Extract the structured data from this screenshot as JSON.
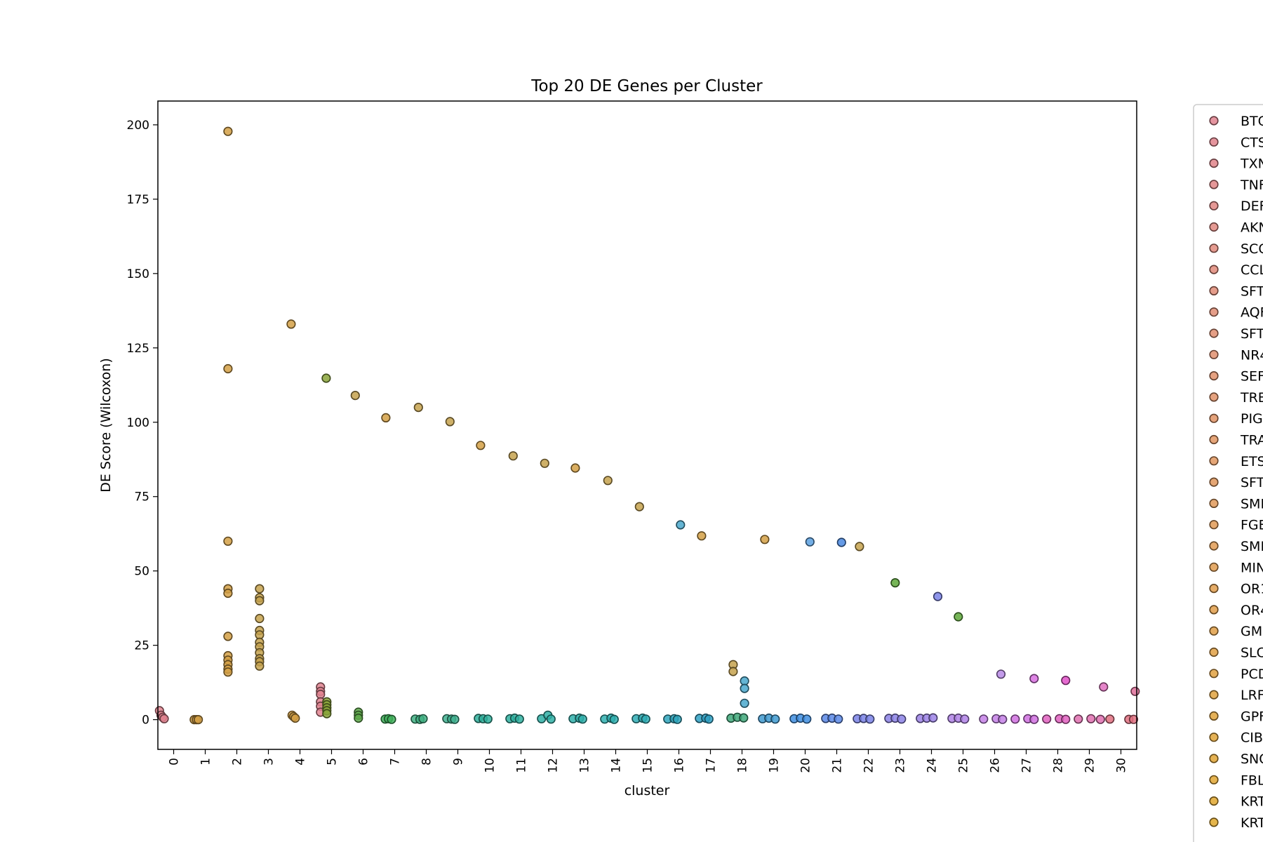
{
  "chart_data": {
    "type": "scatter",
    "title": "Top 20 DE Genes per Cluster",
    "xlabel": "cluster",
    "ylabel": "DE Score (Wilcoxon)",
    "xlim": [
      -0.5,
      30.5
    ],
    "ylim": [
      -10,
      208
    ],
    "categories": [
      "0",
      "1",
      "2",
      "3",
      "4",
      "5",
      "6",
      "7",
      "8",
      "9",
      "10",
      "11",
      "12",
      "13",
      "14",
      "15",
      "16",
      "17",
      "18",
      "19",
      "20",
      "21",
      "22",
      "23",
      "24",
      "25",
      "26",
      "27",
      "28",
      "29",
      "30"
    ],
    "yticks": [
      0,
      25,
      50,
      75,
      100,
      125,
      150,
      175,
      200
    ],
    "ytick_labels": [
      "0",
      "25",
      "50",
      "75",
      "100",
      "125",
      "150",
      "175",
      "200"
    ],
    "grid": false,
    "legend_position": "right (outside plot, truncated)",
    "legend": [
      "BTG",
      "CTS",
      "TXN",
      "TNF",
      "DEF",
      "AKN",
      "SCG",
      "CCL",
      "SFT",
      "AQF",
      "SFT",
      "NR4",
      "SEF",
      "TRE",
      "PIG",
      "TRA",
      "ETS",
      "SFT",
      "SMI",
      "FGE",
      "SMI",
      "MIN",
      "OR1",
      "OR4",
      "GM",
      "SLC",
      "PCD",
      "LRF",
      "GPF",
      "CIB",
      "SNC",
      "FBL",
      "KRT",
      "KRT"
    ],
    "legend_colors": [
      "#e0828f",
      "#e0838c",
      "#e08489",
      "#e08586",
      "#e08683",
      "#e08880",
      "#e0897d",
      "#e08a7a",
      "#e08c77",
      "#e08d74",
      "#e08e71",
      "#e08f6e",
      "#e0916b",
      "#e09268",
      "#e09365",
      "#e09562",
      "#e0965f",
      "#e0975c",
      "#e09959",
      "#e09a56",
      "#e09b53",
      "#e09c50",
      "#e09d4d",
      "#e09e4a",
      "#e09f47",
      "#e0a044",
      "#e0a141",
      "#e0a23e",
      "#e0a33b",
      "#e0a438",
      "#e0a535",
      "#e0a632",
      "#e0a72f",
      "#e0a82c"
    ],
    "series": [
      {
        "values": [
          [
            -0.45,
            3
          ],
          [
            -0.4,
            1.5
          ],
          [
            -0.35,
            0.8
          ],
          [
            -0.3,
            0.3
          ]
        ],
        "color": "#e0828f"
      },
      {
        "values": [
          [
            0.65,
            0
          ],
          [
            0.72,
            0
          ],
          [
            0.78,
            0
          ]
        ],
        "color": "#d4a045"
      },
      {
        "values": [
          [
            1.72,
            197.8
          ],
          [
            1.72,
            118
          ],
          [
            1.72,
            60
          ],
          [
            1.72,
            44
          ],
          [
            1.72,
            42.5
          ],
          [
            1.72,
            28
          ],
          [
            1.72,
            21.5
          ],
          [
            1.72,
            20
          ],
          [
            1.72,
            18.5
          ],
          [
            1.72,
            17
          ],
          [
            1.72,
            16
          ]
        ],
        "color": "#d4a045"
      },
      {
        "values": [
          [
            2.72,
            44
          ],
          [
            2.72,
            41
          ],
          [
            2.72,
            40
          ],
          [
            2.72,
            34
          ],
          [
            2.72,
            30
          ],
          [
            2.72,
            28.5
          ],
          [
            2.72,
            26
          ],
          [
            2.72,
            24.5
          ],
          [
            2.72,
            22.5
          ],
          [
            2.72,
            20.5
          ],
          [
            2.72,
            19.5
          ],
          [
            2.72,
            18
          ]
        ],
        "color": "#c6a24e"
      },
      {
        "values": [
          [
            3.72,
            133
          ],
          [
            3.75,
            1.5
          ],
          [
            3.8,
            1
          ],
          [
            3.85,
            0.5
          ]
        ],
        "color": "#d4a045"
      },
      {
        "values": [
          [
            4.65,
            11
          ],
          [
            4.65,
            9.5
          ],
          [
            4.65,
            8.5
          ],
          [
            4.65,
            6
          ],
          [
            4.65,
            4.5
          ],
          [
            4.65,
            2.5
          ]
        ],
        "color": "#e0828f"
      },
      {
        "values": [
          [
            4.83,
            114.8
          ],
          [
            4.85,
            6
          ],
          [
            4.85,
            5
          ],
          [
            4.85,
            4
          ],
          [
            4.85,
            3
          ],
          [
            4.85,
            2
          ]
        ],
        "color": "#8aa53a"
      },
      {
        "values": [
          [
            5.75,
            109
          ]
        ],
        "color": "#c6a24e"
      },
      {
        "values": [
          [
            5.85,
            2.5
          ],
          [
            5.85,
            1.5
          ],
          [
            5.85,
            0.5
          ]
        ],
        "color": "#5ea84a"
      },
      {
        "values": [
          [
            6.72,
            101.5
          ]
        ],
        "color": "#d4a045"
      },
      {
        "values": [
          [
            6.7,
            0.2
          ],
          [
            6.8,
            0.3
          ],
          [
            6.9,
            0.1
          ]
        ],
        "color": "#3fb05a"
      },
      {
        "values": [
          [
            7.75,
            105
          ]
        ],
        "color": "#c6a24e"
      },
      {
        "values": [
          [
            7.65,
            0.2
          ],
          [
            7.8,
            0.1
          ],
          [
            7.9,
            0.3
          ]
        ],
        "color": "#3fb082"
      },
      {
        "values": [
          [
            8.75,
            100.2
          ]
        ],
        "color": "#c6a24e"
      },
      {
        "values": [
          [
            8.65,
            0.3
          ],
          [
            8.8,
            0.2
          ],
          [
            8.9,
            0.1
          ]
        ],
        "color": "#3fb08f"
      },
      {
        "values": [
          [
            9.72,
            92.2
          ]
        ],
        "color": "#d4a045"
      },
      {
        "values": [
          [
            9.65,
            0.4
          ],
          [
            9.8,
            0.3
          ],
          [
            9.95,
            0.2
          ]
        ],
        "color": "#2fb09c"
      },
      {
        "values": [
          [
            10.75,
            88.7
          ]
        ],
        "color": "#c6a24e"
      },
      {
        "values": [
          [
            10.65,
            0.3
          ],
          [
            10.8,
            0.5
          ],
          [
            10.95,
            0.2
          ]
        ],
        "color": "#2fb0a0"
      },
      {
        "values": [
          [
            11.75,
            86.2
          ]
        ],
        "color": "#c6a24e"
      },
      {
        "values": [
          [
            11.65,
            0.3
          ],
          [
            11.85,
            1.5
          ],
          [
            11.95,
            0.2
          ]
        ],
        "color": "#2fb0a6"
      },
      {
        "values": [
          [
            12.72,
            84.6
          ]
        ],
        "color": "#d4a045"
      },
      {
        "values": [
          [
            12.65,
            0.3
          ],
          [
            12.85,
            0.5
          ],
          [
            12.95,
            0.2
          ]
        ],
        "color": "#2fb0ab"
      },
      {
        "values": [
          [
            13.75,
            80.4
          ]
        ],
        "color": "#c6a24e"
      },
      {
        "values": [
          [
            13.65,
            0.2
          ],
          [
            13.85,
            0.5
          ],
          [
            13.95,
            0.1
          ]
        ],
        "color": "#2fb0b0"
      },
      {
        "values": [
          [
            14.75,
            71.6
          ]
        ],
        "color": "#c6a24e"
      },
      {
        "values": [
          [
            14.65,
            0.3
          ],
          [
            14.85,
            0.5
          ],
          [
            14.95,
            0.2
          ]
        ],
        "color": "#2fadb5"
      },
      {
        "values": [
          [
            16.05,
            65.5
          ]
        ],
        "color": "#4aa8cc"
      },
      {
        "values": [
          [
            15.65,
            0.2
          ],
          [
            15.85,
            0.3
          ],
          [
            15.95,
            0.1
          ]
        ],
        "color": "#2fa6bd"
      },
      {
        "values": [
          [
            16.72,
            61.8
          ]
        ],
        "color": "#d4a045"
      },
      {
        "values": [
          [
            16.65,
            0.4
          ],
          [
            16.85,
            0.5
          ],
          [
            16.95,
            0.2
          ]
        ],
        "color": "#2fa1c4"
      },
      {
        "values": [
          [
            17.72,
            18.5
          ],
          [
            17.72,
            16.2
          ]
        ],
        "color": "#c6a24e"
      },
      {
        "values": [
          [
            18.08,
            13
          ],
          [
            18.08,
            10.5
          ],
          [
            18.08,
            5.5
          ]
        ],
        "color": "#4aa8cc"
      },
      {
        "values": [
          [
            17.65,
            0.5
          ],
          [
            17.85,
            0.8
          ],
          [
            18.05,
            0.6
          ]
        ],
        "color": "#3fa87a"
      },
      {
        "values": [
          [
            18.72,
            60.6
          ]
        ],
        "color": "#d4a045"
      },
      {
        "values": [
          [
            18.65,
            0.3
          ],
          [
            18.85,
            0.5
          ],
          [
            19.05,
            0.2
          ]
        ],
        "color": "#3f9ad0"
      },
      {
        "values": [
          [
            20.15,
            59.8
          ]
        ],
        "color": "#5aa0e0"
      },
      {
        "values": [
          [
            19.65,
            0.3
          ],
          [
            19.85,
            0.5
          ],
          [
            20.05,
            0.2
          ]
        ],
        "color": "#3f8ee0"
      },
      {
        "values": [
          [
            21.15,
            59.6
          ]
        ],
        "color": "#4a88e0"
      },
      {
        "values": [
          [
            20.65,
            0.4
          ],
          [
            20.85,
            0.5
          ],
          [
            21.05,
            0.2
          ]
        ],
        "color": "#5a88e6"
      },
      {
        "values": [
          [
            21.72,
            58.2
          ]
        ],
        "color": "#c6a24e"
      },
      {
        "values": [
          [
            21.65,
            0.3
          ],
          [
            21.85,
            0.4
          ],
          [
            22.05,
            0.2
          ]
        ],
        "color": "#7a82e6"
      },
      {
        "values": [
          [
            22.85,
            46
          ]
        ],
        "color": "#5ea83a"
      },
      {
        "values": [
          [
            22.65,
            0.4
          ],
          [
            22.85,
            0.5
          ],
          [
            23.05,
            0.2
          ]
        ],
        "color": "#8c82e6"
      },
      {
        "values": [
          [
            24.2,
            41.4
          ]
        ],
        "color": "#7a82e6"
      },
      {
        "values": [
          [
            23.65,
            0.4
          ],
          [
            23.85,
            0.5
          ],
          [
            24.05,
            0.6
          ]
        ],
        "color": "#9c82e6"
      },
      {
        "values": [
          [
            24.85,
            34.6
          ]
        ],
        "color": "#5ea83a"
      },
      {
        "values": [
          [
            24.65,
            0.4
          ],
          [
            24.85,
            0.5
          ],
          [
            25.05,
            0.2
          ]
        ],
        "color": "#b082e6"
      },
      {
        "values": [
          [
            26.2,
            15.3
          ]
        ],
        "color": "#b88ae6"
      },
      {
        "values": [
          [
            25.65,
            0.2
          ],
          [
            26.05,
            0.3
          ],
          [
            26.25,
            0.1
          ]
        ],
        "color": "#c480e6"
      },
      {
        "values": [
          [
            27.25,
            13.8
          ]
        ],
        "color": "#d870e0"
      },
      {
        "values": [
          [
            26.65,
            0.2
          ],
          [
            27.05,
            0.3
          ],
          [
            27.25,
            0.1
          ]
        ],
        "color": "#d070e0"
      },
      {
        "values": [
          [
            28.25,
            13.2
          ]
        ],
        "color": "#e050c8"
      },
      {
        "values": [
          [
            27.65,
            0.2
          ],
          [
            28.05,
            0.3
          ],
          [
            28.25,
            0.1
          ]
        ],
        "color": "#e060c0"
      },
      {
        "values": [
          [
            29.45,
            11
          ]
        ],
        "color": "#e070c0"
      },
      {
        "values": [
          [
            28.65,
            0.2
          ],
          [
            29.05,
            0.3
          ],
          [
            29.35,
            0.1
          ]
        ],
        "color": "#e070b0"
      },
      {
        "values": [
          [
            30.45,
            9.5
          ]
        ],
        "color": "#e0709a"
      },
      {
        "values": [
          [
            29.65,
            0.2
          ],
          [
            30.25,
            0.1
          ],
          [
            30.4,
            0.1
          ]
        ],
        "color": "#e07080"
      }
    ]
  }
}
